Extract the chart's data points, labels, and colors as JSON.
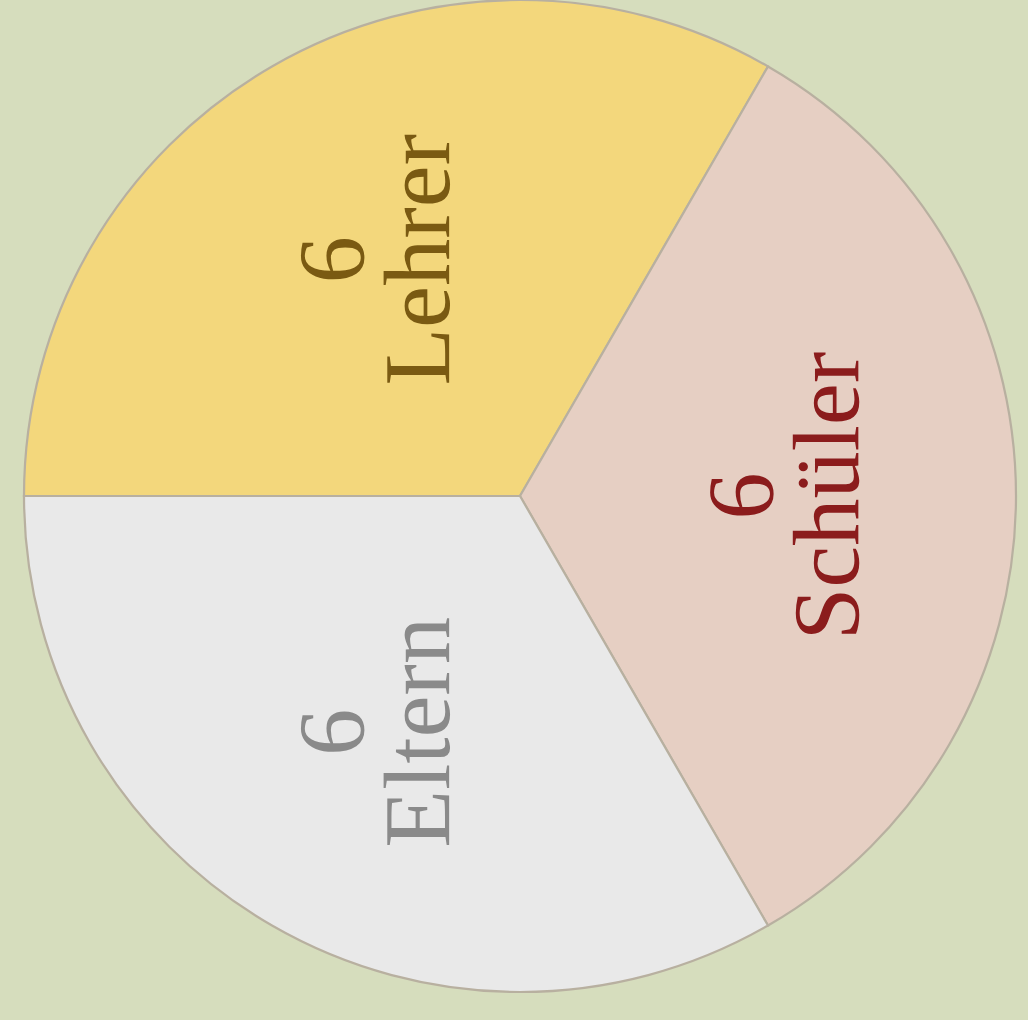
{
  "chart_data": {
    "type": "pie",
    "categories": [
      "Lehrer",
      "Schüler",
      "Eltern"
    ],
    "values": [
      6,
      6,
      6
    ],
    "colors": [
      "#f3d77c",
      "#e6cfc3",
      "#e9e9e9"
    ],
    "data_labels": true,
    "legend": false
  }
}
